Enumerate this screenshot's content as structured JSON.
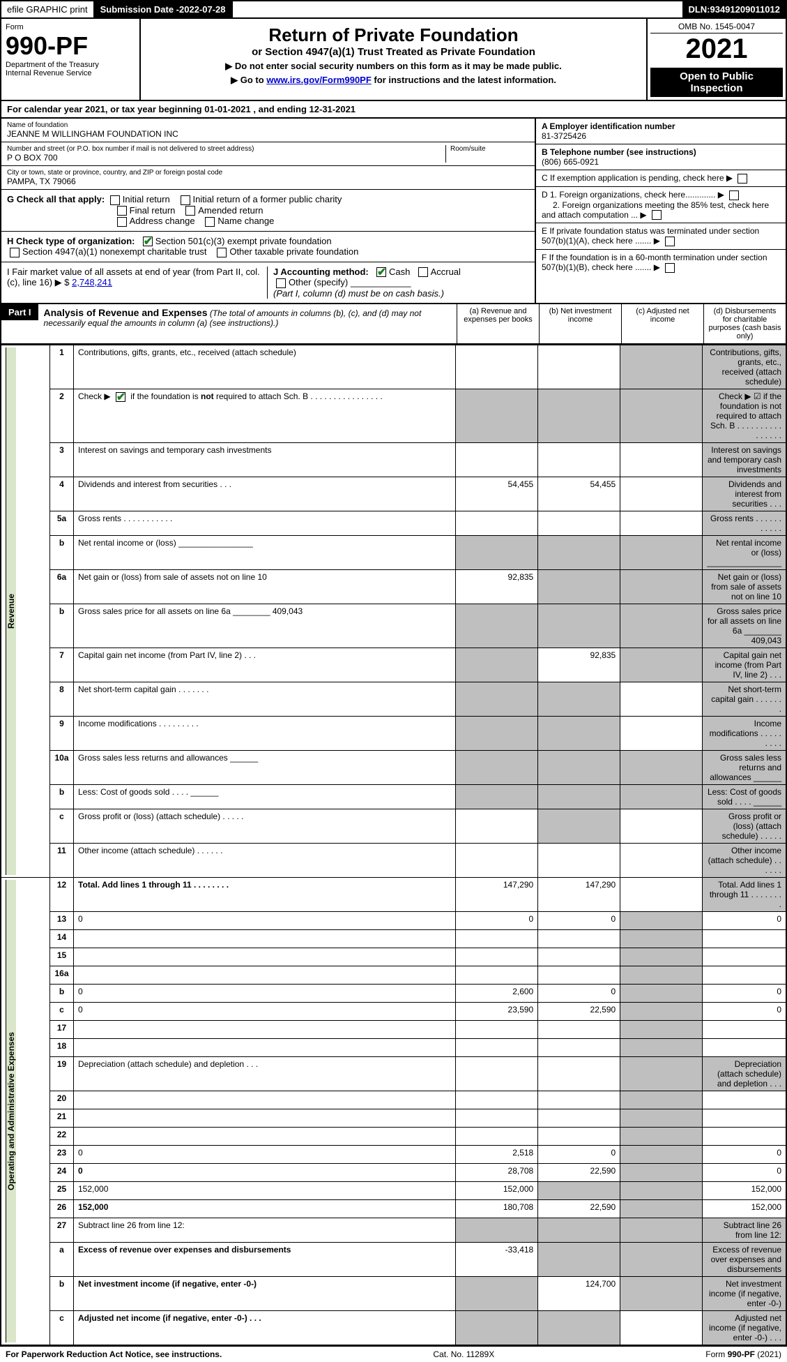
{
  "topbar": {
    "efile": "efile GRAPHIC print",
    "subdate_lbl": "Submission Date - ",
    "subdate": "2022-07-28",
    "dln_lbl": "DLN: ",
    "dln": "93491209011012"
  },
  "header": {
    "form_lbl": "Form",
    "form_no": "990-PF",
    "dept1": "Department of the Treasury",
    "dept2": "Internal Revenue Service",
    "title": "Return of Private Foundation",
    "subtitle": "or Section 4947(a)(1) Trust Treated as Private Foundation",
    "note1": "▶ Do not enter social security numbers on this form as it may be made public.",
    "note2_pre": "▶ Go to ",
    "note2_link": "www.irs.gov/Form990PF",
    "note2_post": " for instructions and the latest information.",
    "omb": "OMB No. 1545-0047",
    "year": "2021",
    "open": "Open to Public Inspection"
  },
  "calendar": {
    "pre": "For calendar year 2021, or tax year beginning ",
    "beg": "01-01-2021",
    "mid": " , and ending ",
    "end": "12-31-2021"
  },
  "entity": {
    "name_lbl": "Name of foundation",
    "name": "JEANNE M WILLINGHAM FOUNDATION INC",
    "addr_lbl": "Number and street (or P.O. box number if mail is not delivered to street address)",
    "addr": "P O BOX 700",
    "room_lbl": "Room/suite",
    "city_lbl": "City or town, state or province, country, and ZIP or foreign postal code",
    "city": "PAMPA, TX  79066",
    "A_lbl": "A Employer identification number",
    "A": "81-3725426",
    "B_lbl": "B Telephone number (see instructions)",
    "B": "(806) 665-0921",
    "C": "C If exemption application is pending, check here",
    "D1": "D 1. Foreign organizations, check here.............",
    "D2": "2. Foreign organizations meeting the 85% test, check here and attach computation ...",
    "E": "E If private foundation status was terminated under section 507(b)(1)(A), check here .......",
    "F": "F If the foundation is in a 60-month termination under section 507(b)(1)(B), check here .......",
    "G": "G Check all that apply:",
    "G_opts": [
      "Initial return",
      "Initial return of a former public charity",
      "Final return",
      "Amended return",
      "Address change",
      "Name change"
    ],
    "H": "H Check type of organization:",
    "H1": "Section 501(c)(3) exempt private foundation",
    "H2": "Section 4947(a)(1) nonexempt charitable trust",
    "H3": "Other taxable private foundation",
    "I_pre": "I Fair market value of all assets at end of year (from Part II, col. (c), line 16) ▶ $ ",
    "I_val": "2,748,241",
    "J": "J Accounting method:",
    "J_cash": "Cash",
    "J_accr": "Accrual",
    "J_other": "Other (specify)",
    "J_note": "(Part I, column (d) must be on cash basis.)"
  },
  "part1": {
    "label": "Part I",
    "title": "Analysis of Revenue and Expenses",
    "title_note": "(The total of amounts in columns (b), (c), and (d) may not necessarily equal the amounts in column (a) (see instructions).)",
    "col_a": "(a) Revenue and expenses per books",
    "col_b": "(b) Net investment income",
    "col_c": "(c) Adjusted net income",
    "col_d": "(d) Disbursements for charitable purposes (cash basis only)"
  },
  "side": {
    "rev": "Revenue",
    "exp": "Operating and Administrative Expenses"
  },
  "lines": [
    {
      "n": "1",
      "d": "Contributions, gifts, grants, etc., received (attach schedule)",
      "a": "",
      "b": "",
      "c_shade": true,
      "d_shade": true
    },
    {
      "n": "2",
      "d": "Check ▶ ☑ if the foundation is not required to attach Sch. B   .  .  .  .  .  .  .  .  .  .  .  .  .  .  .  .",
      "a_shade": true,
      "b_shade": true,
      "c_shade": true,
      "d_shade": true,
      "bold_not": true
    },
    {
      "n": "3",
      "d": "Interest on savings and temporary cash investments",
      "a": "",
      "b": "",
      "c": "",
      "d_shade": true
    },
    {
      "n": "4",
      "d": "Dividends and interest from securities   .   .   .",
      "a": "54,455",
      "b": "54,455",
      "c": "",
      "d_shade": true
    },
    {
      "n": "5a",
      "d": "Gross rents   .   .   .   .   .   .   .   .   .   .   .",
      "a": "",
      "b": "",
      "c": "",
      "d_shade": true
    },
    {
      "n": "b",
      "d": "Net rental income or (loss)  ________________",
      "a_shade": true,
      "b_shade": true,
      "c_shade": true,
      "d_shade": true
    },
    {
      "n": "6a",
      "d": "Net gain or (loss) from sale of assets not on line 10",
      "a": "92,835",
      "b_shade": true,
      "c_shade": true,
      "d_shade": true
    },
    {
      "n": "b",
      "d": "Gross sales price for all assets on line 6a ________ 409,043",
      "a_shade": true,
      "b_shade": true,
      "c_shade": true,
      "d_shade": true
    },
    {
      "n": "7",
      "d": "Capital gain net income (from Part IV, line 2)   .   .   .",
      "a_shade": true,
      "b": "92,835",
      "c_shade": true,
      "d_shade": true
    },
    {
      "n": "8",
      "d": "Net short-term capital gain   .   .   .   .   .   .   .",
      "a_shade": true,
      "b_shade": true,
      "c": "",
      "d_shade": true
    },
    {
      "n": "9",
      "d": "Income modifications   .   .   .   .   .   .   .   .   .",
      "a_shade": true,
      "b_shade": true,
      "c": "",
      "d_shade": true
    },
    {
      "n": "10a",
      "d": "Gross sales less returns and allowances  ______",
      "a_shade": true,
      "b_shade": true,
      "c_shade": true,
      "d_shade": true
    },
    {
      "n": "b",
      "d": "Less: Cost of goods sold   .   .   .   .   ______",
      "a_shade": true,
      "b_shade": true,
      "c_shade": true,
      "d_shade": true
    },
    {
      "n": "c",
      "d": "Gross profit or (loss) (attach schedule)   .   .   .   .   .",
      "a": "",
      "b_shade": true,
      "c": "",
      "d_shade": true
    },
    {
      "n": "11",
      "d": "Other income (attach schedule)   .   .   .   .   .   .",
      "a": "",
      "b": "",
      "c": "",
      "d_shade": true
    },
    {
      "n": "12",
      "d": "Total. Add lines 1 through 11  .  .  .  .  .  .  .  .",
      "a": "147,290",
      "b": "147,290",
      "c": "",
      "d_shade": true,
      "bold": true
    },
    {
      "n": "13",
      "d": "0",
      "a": "0",
      "b": "0",
      "c_shade": true
    },
    {
      "n": "14",
      "d": "",
      "a": "",
      "b": "",
      "c_shade": true
    },
    {
      "n": "15",
      "d": "",
      "a": "",
      "b": "",
      "c_shade": true
    },
    {
      "n": "16a",
      "d": "",
      "a": "",
      "b": "",
      "c_shade": true
    },
    {
      "n": "b",
      "d": "0",
      "a": "2,600",
      "b": "0",
      "c_shade": true
    },
    {
      "n": "c",
      "d": "0",
      "a": "23,590",
      "b": "22,590",
      "c_shade": true
    },
    {
      "n": "17",
      "d": "",
      "a": "",
      "b": "",
      "c_shade": true
    },
    {
      "n": "18",
      "d": "",
      "a": "",
      "b": "",
      "c_shade": true
    },
    {
      "n": "19",
      "d": "Depreciation (attach schedule) and depletion   .   .   .",
      "a": "",
      "b": "",
      "c_shade": true,
      "d_shade": true
    },
    {
      "n": "20",
      "d": "",
      "a": "",
      "b": "",
      "c_shade": true
    },
    {
      "n": "21",
      "d": "",
      "a": "",
      "b": "",
      "c_shade": true
    },
    {
      "n": "22",
      "d": "",
      "a": "",
      "b": "",
      "c_shade": true
    },
    {
      "n": "23",
      "d": "0",
      "a": "2,518",
      "b": "0",
      "c_shade": true
    },
    {
      "n": "24",
      "d": "0",
      "a": "28,708",
      "b": "22,590",
      "c_shade": true,
      "bold": true
    },
    {
      "n": "25",
      "d": "152,000",
      "a": "152,000",
      "b_shade": true,
      "c_shade": true
    },
    {
      "n": "26",
      "d": "152,000",
      "a": "180,708",
      "b": "22,590",
      "c_shade": true,
      "bold": true
    },
    {
      "n": "27",
      "d": "Subtract line 26 from line 12:",
      "a_shade": true,
      "b_shade": true,
      "c_shade": true,
      "d_shade": true
    },
    {
      "n": "a",
      "d": "Excess of revenue over expenses and disbursements",
      "a": "-33,418",
      "b_shade": true,
      "c_shade": true,
      "d_shade": true,
      "bold": true
    },
    {
      "n": "b",
      "d": "Net investment income (if negative, enter -0-)",
      "a_shade": true,
      "b": "124,700",
      "c_shade": true,
      "d_shade": true,
      "bold": true
    },
    {
      "n": "c",
      "d": "Adjusted net income (if negative, enter -0-)   .   .   .",
      "a_shade": true,
      "b_shade": true,
      "c": "",
      "d_shade": true,
      "bold": true
    }
  ],
  "footer": {
    "left": "For Paperwork Reduction Act Notice, see instructions.",
    "mid": "Cat. No. 11289X",
    "right": "Form 990-PF (2021)"
  },
  "colors": {
    "shade": "#bfbfbf",
    "side": "#d9e6c9",
    "link": "#0000cc"
  }
}
